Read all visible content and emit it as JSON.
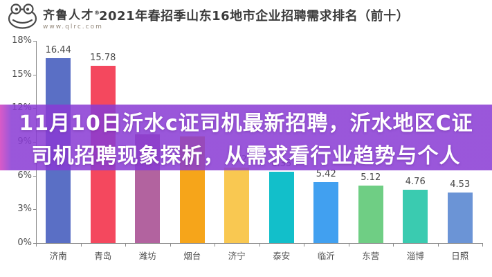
{
  "header": {
    "logo_text": "齐鲁人才",
    "logo_reg": "®",
    "logo_site": "www.qlrc.com",
    "title": "2021年春招季山东16地市企业招聘需求排名（前十）"
  },
  "overlay": {
    "line1": "11月10日沂水c证司机最新招聘，沂水地区C证",
    "line2": "司机招聘现象探析，从需求看行业趋势与个人",
    "bg_color": "rgba(137,59,212,0.86)",
    "edge_color": "rgba(211,64,190,0.86)",
    "text_color": "#ffffff"
  },
  "chart_data": {
    "type": "bar",
    "title": "2021年春招季山东16地市企业招聘需求排名（前十）",
    "categories": [
      "济南",
      "青岛",
      "潍坊",
      "烟台",
      "济宁",
      "泰安",
      "临沂",
      "东营",
      "淄博",
      "日照"
    ],
    "values": [
      16.44,
      15.78,
      9.7,
      9.5,
      6.72,
      6.35,
      5.42,
      5.12,
      4.76,
      4.53
    ],
    "value_labels": [
      "16.44",
      "15.78",
      "",
      "",
      "6.72",
      "6.35",
      "5.42",
      "5.12",
      "4.76",
      "4.53"
    ],
    "estimated_categories": [
      "潍坊",
      "烟台"
    ],
    "bar_colors": [
      "#5a6fc5",
      "#f4485e",
      "#b2639f",
      "#f6a51a",
      "#f9c851",
      "#12bfca",
      "#41a0f0",
      "#6fce84",
      "#3acbb0",
      "#6b94d6"
    ],
    "ylim": [
      0,
      18
    ],
    "ytick_values": [
      0,
      3,
      6,
      9,
      12,
      15,
      18
    ],
    "ytick_labels": [
      "0%",
      "3%",
      "6%",
      "9%",
      "12%",
      "15%",
      "18%"
    ],
    "unit": "%",
    "grid": "off",
    "legend": "none"
  }
}
